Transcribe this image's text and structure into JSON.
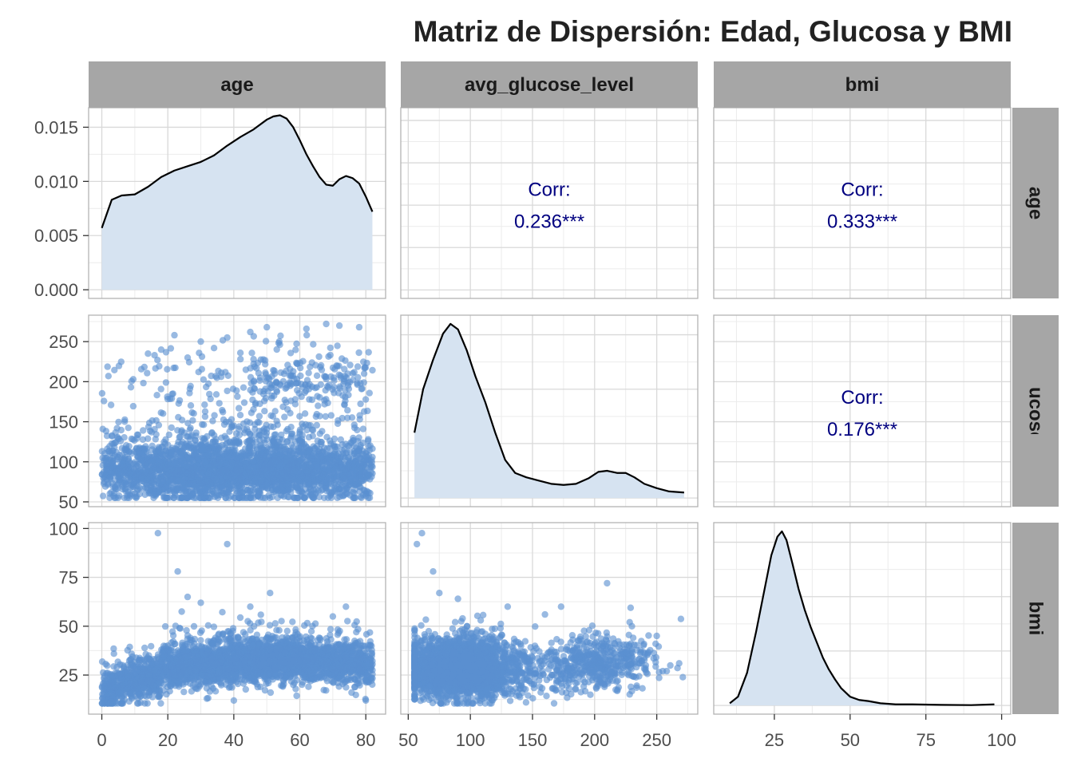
{
  "title": "Matriz de Dispersión: Edad, Glucosa y BMI",
  "colors": {
    "point": "#5b8fd1",
    "density_fill": "#d6e3f1",
    "density_line": "#000000",
    "strip_bg": "#a6a6a6",
    "panel_border": "#b3b3b3",
    "grid_major": "#d9d9d9",
    "grid_minor": "#ececec",
    "corr_text": "#000080"
  },
  "chart_data": {
    "type": "scatter",
    "variables": [
      "age",
      "avg_glucose_level",
      "bmi"
    ],
    "ranges": {
      "age": [
        -4,
        86
      ],
      "avg_glucose_level": [
        44,
        283
      ],
      "bmi": [
        5,
        103
      ]
    },
    "ticks": {
      "age": [
        0,
        20,
        40,
        60,
        80
      ],
      "avg_glucose_level": [
        50,
        100,
        150,
        200,
        250
      ],
      "bmi": [
        25,
        50,
        75,
        100
      ]
    },
    "x_tick_labels": {
      "age": [
        "0",
        "20",
        "40",
        "60",
        "80"
      ],
      "avg_glucose_level": [
        "50",
        "100",
        "150",
        "200",
        "250"
      ],
      "bmi": [
        "25",
        "50",
        "75",
        "100"
      ]
    },
    "density_axis": {
      "range": [
        -0.0008,
        0.0168
      ],
      "ticks": [
        0.0,
        0.005,
        0.01,
        0.015
      ],
      "tick_labels": [
        "0.000",
        "0.005",
        "0.010",
        "0.015"
      ]
    },
    "row_tick_labels": {
      "avg_glucose_level": [
        "50",
        "100",
        "150",
        "200",
        "250"
      ],
      "bmi": [
        "25",
        "50",
        "75",
        "100"
      ]
    },
    "correlations": [
      {
        "row": "age",
        "col": "avg_glucose_level",
        "label": "Corr:",
        "value": "0.236***"
      },
      {
        "row": "age",
        "col": "bmi",
        "label": "Corr:",
        "value": "0.333***"
      },
      {
        "row": "avg_glucose_level",
        "col": "bmi",
        "label": "Corr:",
        "value": "0.176***"
      }
    ],
    "densities": {
      "age": {
        "x": [
          0,
          3,
          6,
          10,
          14,
          18,
          22,
          26,
          30,
          34,
          38,
          42,
          46,
          50,
          52,
          54,
          56,
          58,
          60,
          62,
          64,
          66,
          68,
          70,
          72,
          74,
          76,
          78,
          80,
          82
        ],
        "y": [
          0.0057,
          0.0083,
          0.0087,
          0.0088,
          0.0095,
          0.0104,
          0.011,
          0.0114,
          0.0118,
          0.0124,
          0.0133,
          0.0141,
          0.0148,
          0.0157,
          0.016,
          0.0161,
          0.0158,
          0.015,
          0.0138,
          0.0125,
          0.0114,
          0.0104,
          0.0097,
          0.0096,
          0.0102,
          0.0105,
          0.0103,
          0.0098,
          0.0086,
          0.0072
        ]
      },
      "avg_glucose_level": {
        "x": [
          55,
          62,
          70,
          78,
          84,
          90,
          97,
          104,
          112,
          120,
          128,
          136,
          145,
          155,
          165,
          175,
          185,
          195,
          203,
          210,
          218,
          225,
          232,
          240,
          250,
          260,
          272
        ],
        "y": [
          0.006,
          0.01,
          0.0127,
          0.0151,
          0.016,
          0.0155,
          0.0136,
          0.0112,
          0.0088,
          0.006,
          0.0035,
          0.0023,
          0.0019,
          0.0016,
          0.0013,
          0.0012,
          0.0013,
          0.0018,
          0.0024,
          0.0025,
          0.0023,
          0.0023,
          0.0019,
          0.0013,
          0.0009,
          0.0006,
          0.0005
        ]
      },
      "bmi": {
        "x": [
          10.3,
          13,
          16,
          19,
          22,
          24,
          26,
          27.5,
          29,
          31,
          33,
          35,
          37,
          39,
          41,
          43,
          45,
          47,
          50,
          53,
          56,
          60,
          65,
          70,
          80,
          90,
          97.6
        ],
        "y": [
          0.0002,
          0.0008,
          0.003,
          0.0068,
          0.011,
          0.0138,
          0.0155,
          0.016,
          0.0152,
          0.013,
          0.0107,
          0.0088,
          0.0072,
          0.0058,
          0.0044,
          0.0033,
          0.0024,
          0.0016,
          0.0008,
          0.0005,
          0.0004,
          0.0002,
          0.0001,
          0.0001,
          5e-05,
          3e-05,
          0.0001
        ]
      }
    },
    "sample_points": {
      "age_glucose": [
        [
          2,
          207
        ],
        [
          18,
          240
        ],
        [
          22,
          258
        ],
        [
          30,
          250
        ],
        [
          38,
          255
        ],
        [
          45,
          262
        ],
        [
          50,
          268
        ],
        [
          62,
          266
        ],
        [
          68,
          272
        ],
        [
          72,
          270
        ],
        [
          78,
          268
        ],
        [
          14,
          235
        ],
        [
          26,
          230
        ],
        [
          34,
          242
        ],
        [
          42,
          236
        ]
      ],
      "age_bmi": [
        [
          17,
          97.6
        ],
        [
          38,
          92
        ],
        [
          23,
          78
        ],
        [
          51,
          67
        ],
        [
          26,
          65
        ],
        [
          70,
          55
        ],
        [
          40,
          12
        ],
        [
          80,
          12
        ],
        [
          30,
          62
        ],
        [
          45,
          60
        ]
      ],
      "glucose_bmi": [
        [
          57,
          92
        ],
        [
          61,
          97.6
        ],
        [
          70,
          78
        ],
        [
          75,
          67
        ],
        [
          210,
          72
        ],
        [
          173,
          60
        ],
        [
          268,
          31
        ],
        [
          258,
          27
        ],
        [
          250,
          45
        ],
        [
          90,
          64
        ],
        [
          130,
          60
        ],
        [
          160,
          56
        ],
        [
          230,
          50
        ],
        [
          105,
          12
        ]
      ]
    }
  }
}
